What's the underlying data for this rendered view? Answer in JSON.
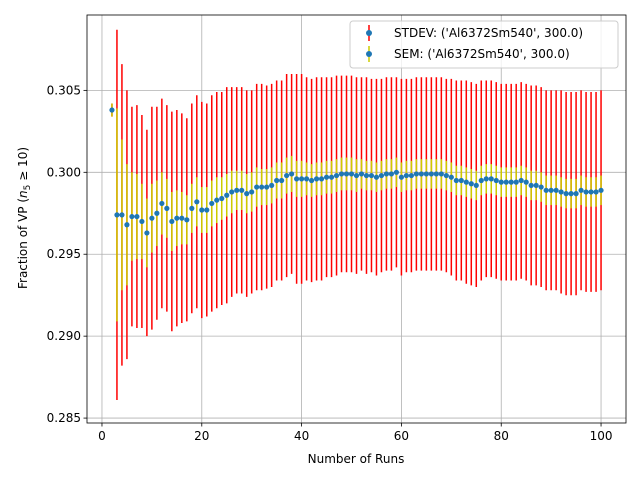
{
  "chart_data": {
    "type": "scatter",
    "xlabel": "Number of Runs",
    "ylabel": "Fraction of VP (",
    "ylabel_math": "n",
    "ylabel_sub": "5",
    "ylabel_tail": " ≥ 10)",
    "xlim": [
      -3,
      105
    ],
    "ylim": [
      0.2847,
      0.3096
    ],
    "xticks": [
      0,
      20,
      40,
      60,
      80,
      100
    ],
    "xtick_labels": [
      "0",
      "20",
      "40",
      "60",
      "80",
      "100"
    ],
    "yticks": [
      0.285,
      0.29,
      0.295,
      0.3,
      0.305
    ],
    "ytick_labels": [
      "0.285",
      "0.290",
      "0.295",
      "0.300",
      "0.305"
    ],
    "grid": true,
    "legend_position": "top-right",
    "colors": {
      "stdev": "#ff0000",
      "sem": "#cccc00",
      "marker": "#1f77b4",
      "grid": "#b0b0b0"
    },
    "legend": [
      {
        "label": "STDEV: ('Al6372Sm540', 300.0)",
        "color": "#ff0000"
      },
      {
        "label": "SEM: ('Al6372Sm540', 300.0)",
        "color": "#cccc00"
      }
    ],
    "x": [
      2,
      3,
      4,
      5,
      6,
      7,
      8,
      9,
      10,
      11,
      12,
      13,
      14,
      15,
      16,
      17,
      18,
      19,
      20,
      21,
      22,
      23,
      24,
      25,
      26,
      27,
      28,
      29,
      30,
      31,
      32,
      33,
      34,
      35,
      36,
      37,
      38,
      39,
      40,
      41,
      42,
      43,
      44,
      45,
      46,
      47,
      48,
      49,
      50,
      51,
      52,
      53,
      54,
      55,
      56,
      57,
      58,
      59,
      60,
      61,
      62,
      63,
      64,
      65,
      66,
      67,
      68,
      69,
      70,
      71,
      72,
      73,
      74,
      75,
      76,
      77,
      78,
      79,
      80,
      81,
      82,
      83,
      84,
      85,
      86,
      87,
      88,
      89,
      90,
      91,
      92,
      93,
      94,
      95,
      96,
      97,
      98,
      99,
      100
    ],
    "y": [
      0.3038,
      0.2974,
      0.2974,
      0.2968,
      0.2973,
      0.2973,
      0.297,
      0.2963,
      0.2972,
      0.2975,
      0.2981,
      0.2978,
      0.297,
      0.2972,
      0.2972,
      0.2971,
      0.2978,
      0.2982,
      0.2977,
      0.2977,
      0.2981,
      0.2983,
      0.2984,
      0.2986,
      0.2988,
      0.2989,
      0.2989,
      0.2987,
      0.2988,
      0.2991,
      0.2991,
      0.2991,
      0.2992,
      0.2995,
      0.2995,
      0.2998,
      0.2999,
      0.2996,
      0.2996,
      0.2996,
      0.2995,
      0.2996,
      0.2996,
      0.2997,
      0.2997,
      0.2998,
      0.2999,
      0.2999,
      0.2999,
      0.2998,
      0.2999,
      0.2998,
      0.2998,
      0.2997,
      0.2998,
      0.2999,
      0.2999,
      0.3,
      0.2997,
      0.2998,
      0.2998,
      0.2999,
      0.2999,
      0.2999,
      0.2999,
      0.2999,
      0.2999,
      0.2998,
      0.2997,
      0.2995,
      0.2995,
      0.2994,
      0.2993,
      0.2992,
      0.2995,
      0.2996,
      0.2996,
      0.2995,
      0.2994,
      0.2994,
      0.2994,
      0.2994,
      0.2995,
      0.2994,
      0.2992,
      0.2992,
      0.2991,
      0.2989,
      0.2989,
      0.2989,
      0.2988,
      0.2987,
      0.2987,
      0.2987,
      0.2989,
      0.2988,
      0.2988,
      0.2988,
      0.2989
    ],
    "stdev": [
      0.0004,
      0.0113,
      0.0092,
      0.0082,
      0.0067,
      0.0068,
      0.0065,
      0.0063,
      0.0068,
      0.0065,
      0.0064,
      0.0063,
      0.0067,
      0.0066,
      0.0064,
      0.0062,
      0.0064,
      0.0065,
      0.0066,
      0.0065,
      0.0066,
      0.0066,
      0.0065,
      0.0066,
      0.0064,
      0.0063,
      0.0063,
      0.0063,
      0.0062,
      0.0063,
      0.0063,
      0.0062,
      0.0062,
      0.0061,
      0.0061,
      0.0062,
      0.0061,
      0.0064,
      0.0064,
      0.0062,
      0.0062,
      0.0062,
      0.0062,
      0.0061,
      0.0061,
      0.0061,
      0.006,
      0.006,
      0.006,
      0.006,
      0.0059,
      0.006,
      0.0059,
      0.006,
      0.0059,
      0.0059,
      0.0059,
      0.0058,
      0.006,
      0.0059,
      0.0059,
      0.0059,
      0.0059,
      0.0059,
      0.0059,
      0.0059,
      0.0059,
      0.0059,
      0.006,
      0.0061,
      0.0061,
      0.0062,
      0.0062,
      0.0062,
      0.0061,
      0.006,
      0.006,
      0.006,
      0.006,
      0.006,
      0.006,
      0.006,
      0.006,
      0.006,
      0.0061,
      0.0061,
      0.0061,
      0.0061,
      0.0061,
      0.0061,
      0.0062,
      0.0062,
      0.0062,
      0.0062,
      0.0061,
      0.0061,
      0.0061,
      0.0061,
      0.0061
    ],
    "sem": [
      0.0004,
      0.0065,
      0.0046,
      0.0037,
      0.0027,
      0.0026,
      0.0023,
      0.0021,
      0.0021,
      0.002,
      0.0019,
      0.0018,
      0.0018,
      0.0017,
      0.0016,
      0.0015,
      0.0015,
      0.0015,
      0.0014,
      0.0014,
      0.0014,
      0.0014,
      0.0013,
      0.0013,
      0.0013,
      0.0012,
      0.0012,
      0.0012,
      0.0012,
      0.0012,
      0.0011,
      0.0011,
      0.0011,
      0.0011,
      0.0011,
      0.0011,
      0.0011,
      0.0011,
      0.0011,
      0.001,
      0.001,
      0.001,
      0.001,
      0.001,
      0.001,
      0.001,
      0.001,
      0.001,
      0.001,
      0.001,
      0.0009,
      0.0009,
      0.0009,
      0.0009,
      0.0009,
      0.0009,
      0.0009,
      0.0009,
      0.0009,
      0.0009,
      0.0009,
      0.0009,
      0.0009,
      0.0009,
      0.0009,
      0.0009,
      0.0009,
      0.0009,
      0.0009,
      0.0009,
      0.0009,
      0.0009,
      0.0009,
      0.0009,
      0.0009,
      0.0009,
      0.0009,
      0.0009,
      0.0009,
      0.0009,
      0.0009,
      0.0009,
      0.0009,
      0.0009,
      0.0009,
      0.0009,
      0.0009,
      0.0009,
      0.0009,
      0.0009,
      0.0009,
      0.0009,
      0.0009,
      0.0009,
      0.0009,
      0.0009,
      0.0009,
      0.0009,
      0.0009
    ]
  }
}
